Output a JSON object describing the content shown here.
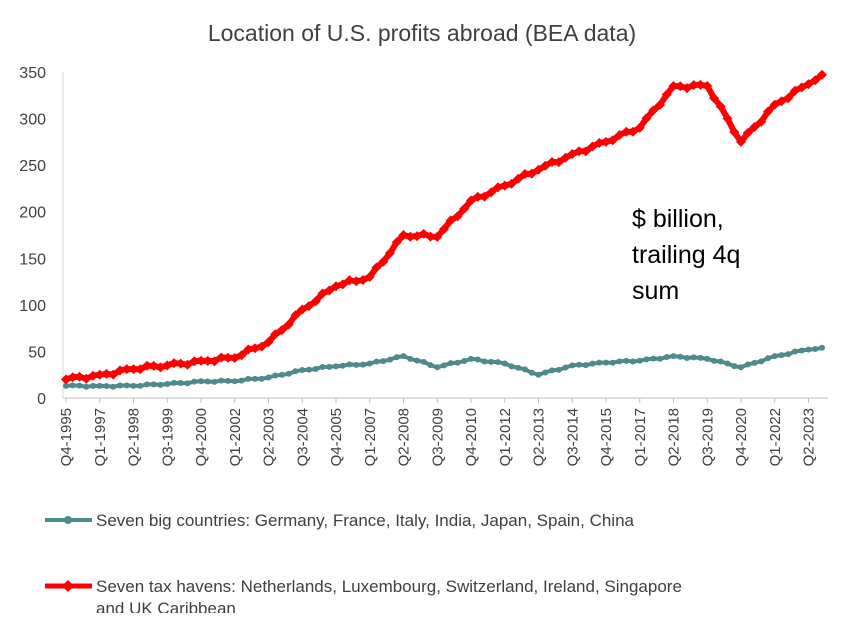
{
  "colors": {
    "havens": "#ff0000",
    "big": "#4f8a8b",
    "axis": "#bfbfbf",
    "text": "#404040"
  },
  "chart_data": {
    "type": "line",
    "title": "Location of U.S. profits abroad (BEA data)",
    "annotation": [
      "$ billion,",
      "trailing 4q",
      "sum"
    ],
    "xlabel": "",
    "ylabel": "",
    "ylim": [
      0,
      350
    ],
    "yticks": [
      0,
      50,
      100,
      150,
      200,
      250,
      300,
      350
    ],
    "grid": false,
    "legend_position": "bottom",
    "x_tick_labels": [
      "Q4-1995",
      "Q1-1997",
      "Q2-1998",
      "Q3-1999",
      "Q4-2000",
      "Q1-2002",
      "Q2-2003",
      "Q3-2004",
      "Q4-2005",
      "Q1-2007",
      "Q2-2008",
      "Q3-2009",
      "Q4-2010",
      "Q1-2012",
      "Q2-2013",
      "Q3-2014",
      "Q4-2015",
      "Q1-2017",
      "Q2-2018",
      "Q3-2019",
      "Q4-2020",
      "Q1-2022",
      "Q2-2023"
    ],
    "x_start": "Q4-1995",
    "x_end": "Q4-2023",
    "series": [
      {
        "name": "Seven big countries: Germany, France, Italy, India, Japan, Spain, China",
        "color": "#4f8a8b",
        "marker": "circle",
        "keypoints": [
          {
            "x": "Q4-1995",
            "y": 13
          },
          {
            "x": "Q1-1997",
            "y": 13
          },
          {
            "x": "Q2-1998",
            "y": 13
          },
          {
            "x": "Q3-1999",
            "y": 15
          },
          {
            "x": "Q4-2000",
            "y": 18
          },
          {
            "x": "Q1-2002",
            "y": 18
          },
          {
            "x": "Q2-2003",
            "y": 22
          },
          {
            "x": "Q3-2004",
            "y": 30
          },
          {
            "x": "Q4-2005",
            "y": 34
          },
          {
            "x": "Q1-2007",
            "y": 37
          },
          {
            "x": "Q2-2008",
            "y": 45
          },
          {
            "x": "Q3-2009",
            "y": 33
          },
          {
            "x": "Q4-2010",
            "y": 42
          },
          {
            "x": "Q1-2012",
            "y": 37
          },
          {
            "x": "Q2-2013",
            "y": 25
          },
          {
            "x": "Q3-2014",
            "y": 35
          },
          {
            "x": "Q4-2015",
            "y": 38
          },
          {
            "x": "Q1-2017",
            "y": 40
          },
          {
            "x": "Q2-2018",
            "y": 45
          },
          {
            "x": "Q3-2019",
            "y": 42
          },
          {
            "x": "Q4-2020",
            "y": 33
          },
          {
            "x": "Q1-2022",
            "y": 45
          },
          {
            "x": "Q2-2023",
            "y": 52
          },
          {
            "x": "Q4-2023",
            "y": 54
          }
        ]
      },
      {
        "name": "Seven tax havens: Netherlands, Luxembourg, Switzerland, Ireland, Singapore and UK Caribbean",
        "color": "#ff0000",
        "marker": "diamond",
        "keypoints": [
          {
            "x": "Q4-1995",
            "y": 20
          },
          {
            "x": "Q1-1997",
            "y": 25
          },
          {
            "x": "Q2-1998",
            "y": 31
          },
          {
            "x": "Q3-1999",
            "y": 35
          },
          {
            "x": "Q4-2000",
            "y": 40
          },
          {
            "x": "Q1-2002",
            "y": 43
          },
          {
            "x": "Q2-2003",
            "y": 60
          },
          {
            "x": "Q3-2004",
            "y": 95
          },
          {
            "x": "Q4-2005",
            "y": 120
          },
          {
            "x": "Q1-2007",
            "y": 130
          },
          {
            "x": "Q2-2008",
            "y": 175
          },
          {
            "x": "Q3-2009",
            "y": 173
          },
          {
            "x": "Q4-2010",
            "y": 212
          },
          {
            "x": "Q1-2012",
            "y": 228
          },
          {
            "x": "Q2-2013",
            "y": 245
          },
          {
            "x": "Q3-2014",
            "y": 262
          },
          {
            "x": "Q4-2015",
            "y": 275
          },
          {
            "x": "Q1-2017",
            "y": 290
          },
          {
            "x": "Q2-2018",
            "y": 335
          },
          {
            "x": "Q3-2019",
            "y": 335
          },
          {
            "x": "Q4-2020",
            "y": 275
          },
          {
            "x": "Q1-2022",
            "y": 315
          },
          {
            "x": "Q2-2023",
            "y": 337
          },
          {
            "x": "Q4-2023",
            "y": 347
          }
        ]
      }
    ]
  }
}
